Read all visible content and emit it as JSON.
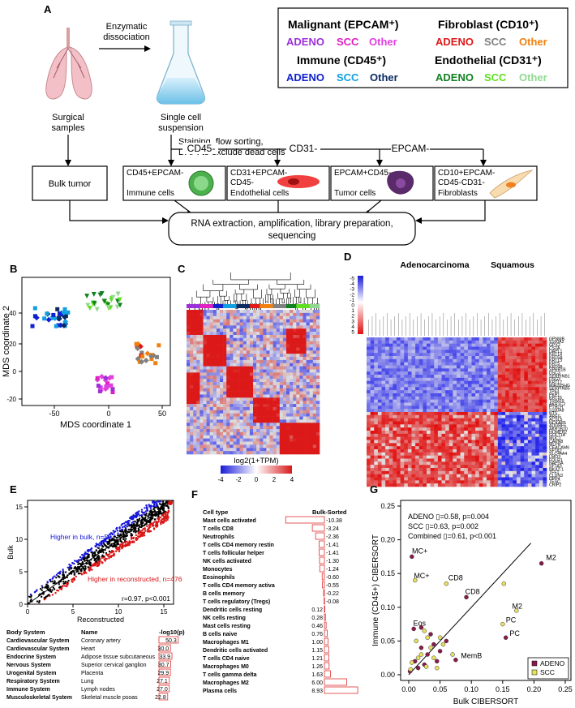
{
  "panels": {
    "A": "A",
    "B": "B",
    "C": "C",
    "D": "D",
    "E": "E",
    "F": "F",
    "G": "G"
  },
  "panelA": {
    "surgical": [
      "Surgical",
      "samples"
    ],
    "enzymatic": [
      "Enzymatic",
      "dissociation"
    ],
    "single_cell": [
      "Single cell",
      "suspension"
    ],
    "staining": [
      "Staining, flow sorting,",
      "DAPI to exclude dead cells"
    ],
    "gates": [
      "CD45-",
      "CD31-",
      "EPCAM-"
    ],
    "bulk": "Bulk tumor",
    "boxes": [
      {
        "l1": "CD45+EPCAM-",
        "l2": "",
        "l3": "Immune cells"
      },
      {
        "l1": "CD31+EPCAM-",
        "l2": "CD45-",
        "l3": "Endothelial cells"
      },
      {
        "l1": "EPCAM+CD45-",
        "l2": "",
        "l3": "Tumor cells"
      },
      {
        "l1": "CD10+EPCAM-",
        "l2": "CD45-CD31-",
        "l3": "Fibroblasts"
      }
    ],
    "rna": [
      "RNA extraction, amplification, library preparation,",
      "sequencing"
    ],
    "legend": {
      "malignant_title": "Malignant (EPCAM⁺)",
      "malignant_items": [
        "ADENO",
        "SCC",
        "Other"
      ],
      "malignant_colors": [
        "#9b30d8",
        "#e020c0",
        "#e040e0"
      ],
      "fibro_title": "Fibroblast (CD10⁺)",
      "fibro_items": [
        "ADENO",
        "SCC",
        "Other"
      ],
      "fibro_colors": [
        "#e01818",
        "#808080",
        "#f08010"
      ],
      "immune_title": "Immune (CD45⁺)",
      "immune_items": [
        "ADENO",
        "SCC",
        "Other"
      ],
      "immune_colors": [
        "#1020d0",
        "#10a0e0",
        "#0a2a60"
      ],
      "endo_title": "Endothelial (CD31⁺)",
      "endo_items": [
        "ADENO",
        "SCC",
        "Other"
      ],
      "endo_colors": [
        "#108020",
        "#60e020",
        "#90d890"
      ]
    }
  },
  "panelB": {
    "xlabel": "MDS coordinate 1",
    "ylabel": "MDS coordinate 2",
    "xticks": [
      "-50",
      "0",
      "50"
    ],
    "yticks": [
      "40",
      "20",
      "0",
      "-20"
    ]
  },
  "panelC": {
    "colorbar_label": "log2(1+TPM)",
    "ticks": [
      "-4",
      "-2",
      "0",
      "2",
      "4"
    ]
  },
  "panelD": {
    "title_adeno": "Adenocarcinoma",
    "title_squam": "Squamous",
    "scale": [
      "-5",
      "-4",
      "-3",
      "-2",
      "-1",
      "0",
      "1",
      "2",
      "3",
      "4",
      "5"
    ],
    "genes": [
      "GPNMB",
      "S100A2",
      "GPX2",
      "CSTA",
      "DAPL1",
      "KRT14",
      "KRT6A",
      "KRT13",
      "KRT5",
      "KRT6B",
      "SPRR1B",
      "DSC3",
      "SERPINB1",
      "DSG3",
      "KRT17",
      "MIR205HG",
      "SERPINB5",
      "TP63",
      "PKP1",
      "KRT16",
      "TRIM29",
      "AKR1C2",
      "PTHLH",
      "S100A8",
      "NTS",
      "AREG",
      "ACSL5",
      "NCKAP5",
      "ADGRF5",
      "AKR1B10",
      "HOMER2",
      "GOLT1A",
      "MUC1",
      "CAPN8",
      "MLPH",
      "CEACAM6",
      "SFTA2",
      "SLC44A4",
      "LMO3",
      "FOLR1",
      "NAPSA",
      "SFTA3",
      "NKX2-1",
      "TFF1",
      "CLDN3",
      "DPP4",
      "TESC",
      "CRIP2"
    ]
  },
  "panelE": {
    "xlabel": "Reconstructed",
    "ylabel": "Bulk",
    "xticks": [
      "0",
      "5",
      "10",
      "15"
    ],
    "yticks": [
      "0",
      "5",
      "10",
      "15"
    ],
    "higher_bulk": "Higher in bulk, n=597",
    "higher_recon": "Higher in reconstructed, n=476",
    "stats": "r=0.97, p<0.001",
    "colors": {
      "bulk": "#1515d8",
      "recon": "#d81515",
      "neutral": "#000000"
    },
    "table_headers": [
      "Body System",
      "Name",
      "-log10(p)"
    ],
    "table": [
      {
        "system": "Cardiovascular System",
        "name": "Coronary artery",
        "value": 50.3
      },
      {
        "system": "Cardiovascular System",
        "name": "Heart",
        "value": 30.0
      },
      {
        "system": "Endocrine System",
        "name": "Adipose tissue subcutaneous",
        "value": 33.9
      },
      {
        "system": "Nervous System",
        "name": "Superior cervical ganglion",
        "value": 30.7
      },
      {
        "system": "Urogenital System",
        "name": "Placenta",
        "value": 29.9
      },
      {
        "system": "Respiratory System",
        "name": "Lung",
        "value": 27.1
      },
      {
        "system": "Immune System",
        "name": "Lymph nodes",
        "value": 27.0
      },
      {
        "system": "Musculoskeletal System",
        "name": "Skeletal muscle psoas",
        "value": 22.8
      }
    ]
  },
  "panelF": {
    "headers": [
      "Cell type",
      "Bulk-Sorted"
    ],
    "rows": [
      {
        "name": "Mast cells activated",
        "value": -10.38
      },
      {
        "name": "T cells CD8",
        "value": -3.24
      },
      {
        "name": "Neutrophils",
        "value": -2.36
      },
      {
        "name": "T cells CD4 memory restin",
        "value": -1.41
      },
      {
        "name": "T cells follicular helper",
        "value": -1.41
      },
      {
        "name": "NK cells activated",
        "value": -1.3
      },
      {
        "name": "Monocytes",
        "value": -1.24
      },
      {
        "name": "Eosinophils",
        "value": -0.6
      },
      {
        "name": "T cells CD4 memory activa",
        "value": -0.55
      },
      {
        "name": "B cells memory",
        "value": -0.22
      },
      {
        "name": "T cells regulatory (Tregs)",
        "value": -0.08
      },
      {
        "name": "Dendritic cells resting",
        "value": 0.12
      },
      {
        "name": "NK cells resting",
        "value": 0.28
      },
      {
        "name": "Mast cells resting",
        "value": 0.46
      },
      {
        "name": "B cells naive",
        "value": 0.76
      },
      {
        "name": "Macrophages M1",
        "value": 1.0
      },
      {
        "name": "Dendritic cells activated",
        "value": 1.15
      },
      {
        "name": "T cells CD4 naive",
        "value": 1.21
      },
      {
        "name": "Macrophages M0",
        "value": 1.26
      },
      {
        "name": "T cells gamma delta",
        "value": 1.63
      },
      {
        "name": "Macrophages M2",
        "value": 6.0
      },
      {
        "name": "Plasma cells",
        "value": 8.93
      }
    ]
  },
  "chart_data": {
    "type": "scatter",
    "title": "",
    "xlabel": "Bulk CIBERSORT",
    "ylabel": "Immune (CD45+) CIBERSORT",
    "xlim": [
      0,
      0.25
    ],
    "ylim": [
      0,
      0.25
    ],
    "xticks": [
      "0.00",
      "0.05",
      "0.10",
      "0.15",
      "0.20",
      "0.25"
    ],
    "yticks": [
      "0.00",
      "0.05",
      "0.10",
      "0.15",
      "0.20",
      "0.25"
    ],
    "stats": [
      "ADENO ▯=0.58, p=0.004",
      "SCC ▯=0.63, p=0.002",
      "Combined ▯=0.61, p<0.001"
    ],
    "legend": [
      "ADENO",
      "SCC"
    ],
    "colors": {
      "ADENO": "#8a1a4a",
      "SCC": "#e8e060"
    },
    "series": [
      {
        "name": "ADENO",
        "points": [
          [
            0.212,
            0.165
          ],
          [
            0.092,
            0.115
          ],
          [
            0.155,
            0.055
          ],
          [
            0.005,
            0.175
          ],
          [
            0.075,
            0.022
          ],
          [
            0.02,
            0.04
          ],
          [
            0.01,
            0.02
          ],
          [
            0.03,
            0.03
          ],
          [
            0.04,
            0.045
          ],
          [
            0.015,
            0.01
          ],
          [
            0.06,
            0.05
          ],
          [
            0.008,
            0.068
          ],
          [
            0.025,
            0.015
          ],
          [
            0.045,
            0.02
          ],
          [
            0.035,
            0.06
          ],
          [
            0.002,
            0.005
          ],
          [
            0.02,
            0.07
          ],
          [
            0.05,
            0.035
          ]
        ]
      },
      {
        "name": "SCC",
        "points": [
          [
            0.01,
            0.14
          ],
          [
            0.06,
            0.135
          ],
          [
            0.172,
            0.095
          ],
          [
            0.15,
            0.075
          ],
          [
            0.152,
            0.135
          ],
          [
            0.03,
            0.055
          ],
          [
            0.02,
            0.03
          ],
          [
            0.04,
            0.025
          ],
          [
            0.055,
            0.045
          ],
          [
            0.012,
            0.05
          ],
          [
            0.005,
            0.018
          ],
          [
            0.025,
            0.065
          ],
          [
            0.045,
            0.01
          ],
          [
            0.035,
            0.04
          ],
          [
            0.015,
            0.025
          ],
          [
            0.07,
            0.03
          ],
          [
            0.003,
            0.008
          ],
          [
            0.028,
            0.012
          ],
          [
            0.05,
            0.055
          ]
        ]
      }
    ],
    "labels": [
      {
        "text": "M2",
        "x": 0.214,
        "y": 0.165
      },
      {
        "text": "CD8",
        "x": 0.085,
        "y": 0.115
      },
      {
        "text": "CD8",
        "x": 0.058,
        "y": 0.135
      },
      {
        "text": "M2",
        "x": 0.16,
        "y": 0.093
      },
      {
        "text": "PC",
        "x": 0.15,
        "y": 0.073
      },
      {
        "text": "PC",
        "x": 0.156,
        "y": 0.053
      },
      {
        "text": "MC+",
        "x": 0.0,
        "y": 0.175
      },
      {
        "text": "MC+",
        "x": 0.003,
        "y": 0.138
      },
      {
        "text": "Eos",
        "x": 0.002,
        "y": 0.068
      },
      {
        "text": "MemB",
        "x": 0.078,
        "y": 0.02
      }
    ]
  }
}
